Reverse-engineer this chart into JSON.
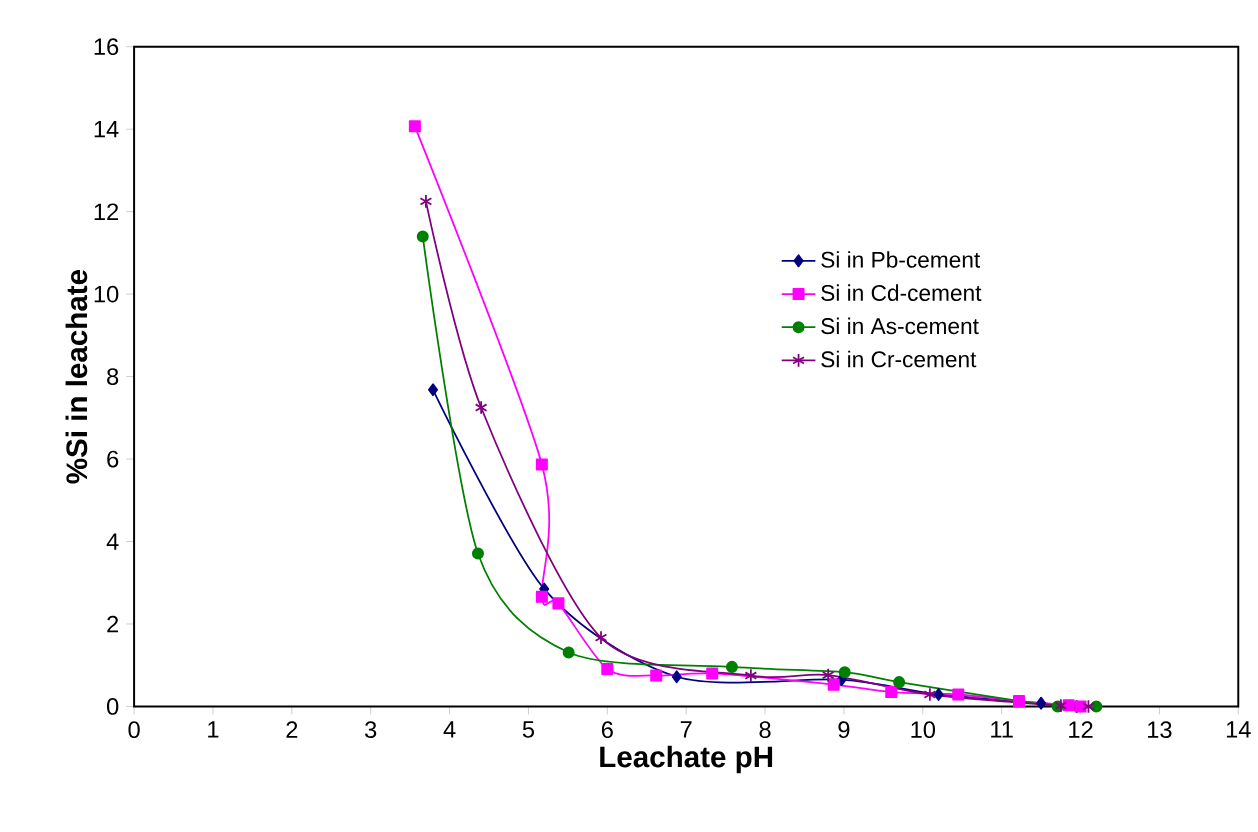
{
  "chart_data": {
    "type": "line",
    "xlabel": "Leachate pH",
    "ylabel": "%Si in leachate",
    "xlim": [
      0,
      14
    ],
    "ylim": [
      0,
      16
    ],
    "xticks": [
      0,
      1,
      2,
      3,
      4,
      5,
      6,
      7,
      8,
      9,
      10,
      11,
      12,
      13,
      14
    ],
    "yticks": [
      0,
      2,
      4,
      6,
      8,
      10,
      12,
      14,
      16
    ],
    "grid": false,
    "legend": "right",
    "line_style": "solid",
    "series": [
      {
        "name": "Si in Pb-cement",
        "color": "#000080",
        "marker": "diamond",
        "x": [
          3.79,
          5.2,
          6.88,
          8.97,
          10.2,
          11.5,
          11.95
        ],
        "values": [
          7.68,
          2.85,
          0.72,
          0.65,
          0.29,
          0.08,
          0.0
        ]
      },
      {
        "name": "Si in Cd-cement",
        "color": "#ff00ff",
        "marker": "square",
        "x": [
          3.56,
          5.17,
          5.17,
          5.38,
          6.0,
          6.62,
          7.33,
          8.87,
          9.6,
          10.45,
          11.22,
          11.85,
          12.0
        ],
        "values": [
          14.07,
          5.87,
          2.66,
          2.5,
          0.91,
          0.75,
          0.8,
          0.53,
          0.35,
          0.29,
          0.13,
          0.03,
          0.0
        ]
      },
      {
        "name": "Si in As-cement",
        "color": "#008000",
        "marker": "circle",
        "x": [
          3.66,
          4.36,
          5.51,
          7.58,
          9.01,
          9.7,
          11.71,
          12.2
        ],
        "values": [
          11.4,
          3.71,
          1.31,
          0.96,
          0.83,
          0.59,
          0.0,
          0.0
        ]
      },
      {
        "name": "Si in Cr-cement",
        "color": "#800080",
        "marker": "cross",
        "x": [
          3.7,
          4.4,
          5.92,
          7.82,
          8.8,
          10.09,
          11.75,
          12.1
        ],
        "values": [
          12.25,
          7.25,
          1.67,
          0.75,
          0.76,
          0.29,
          0.02,
          0.0
        ]
      }
    ]
  }
}
